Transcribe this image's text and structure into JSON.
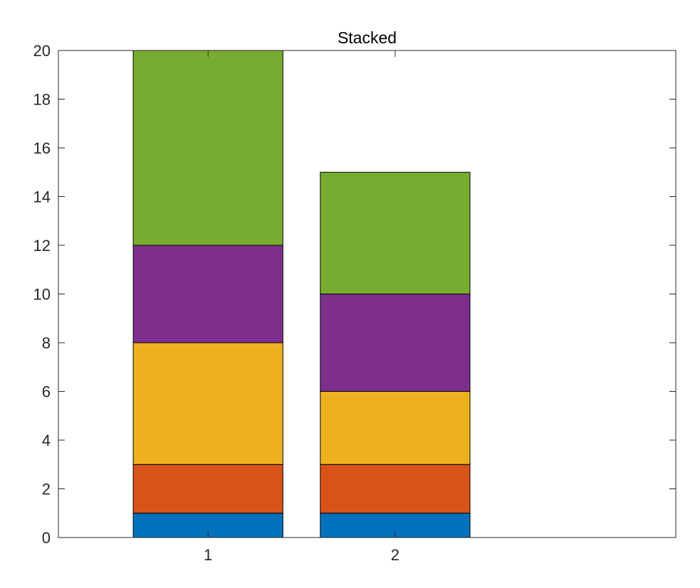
{
  "chart_data": {
    "type": "bar",
    "stacked": true,
    "title": "Stacked",
    "xlabel": "",
    "ylabel": "",
    "categories": [
      "1",
      "2"
    ],
    "series": [
      {
        "values": [
          1,
          1
        ],
        "color": "#0072BD"
      },
      {
        "values": [
          2,
          2
        ],
        "color": "#D95319"
      },
      {
        "values": [
          5,
          3
        ],
        "color": "#EDB120"
      },
      {
        "values": [
          4,
          4
        ],
        "color": "#7E2F8E"
      },
      {
        "values": [
          8,
          5
        ],
        "color": "#77AC30"
      }
    ],
    "xlim": [
      0.2,
      3.5
    ],
    "ylim": [
      0,
      20
    ],
    "yticks": [
      0,
      2,
      4,
      6,
      8,
      10,
      12,
      14,
      16,
      18,
      20
    ],
    "xticks": [
      1,
      2
    ],
    "bar_width": 0.8,
    "grid": false,
    "legend": "none"
  }
}
